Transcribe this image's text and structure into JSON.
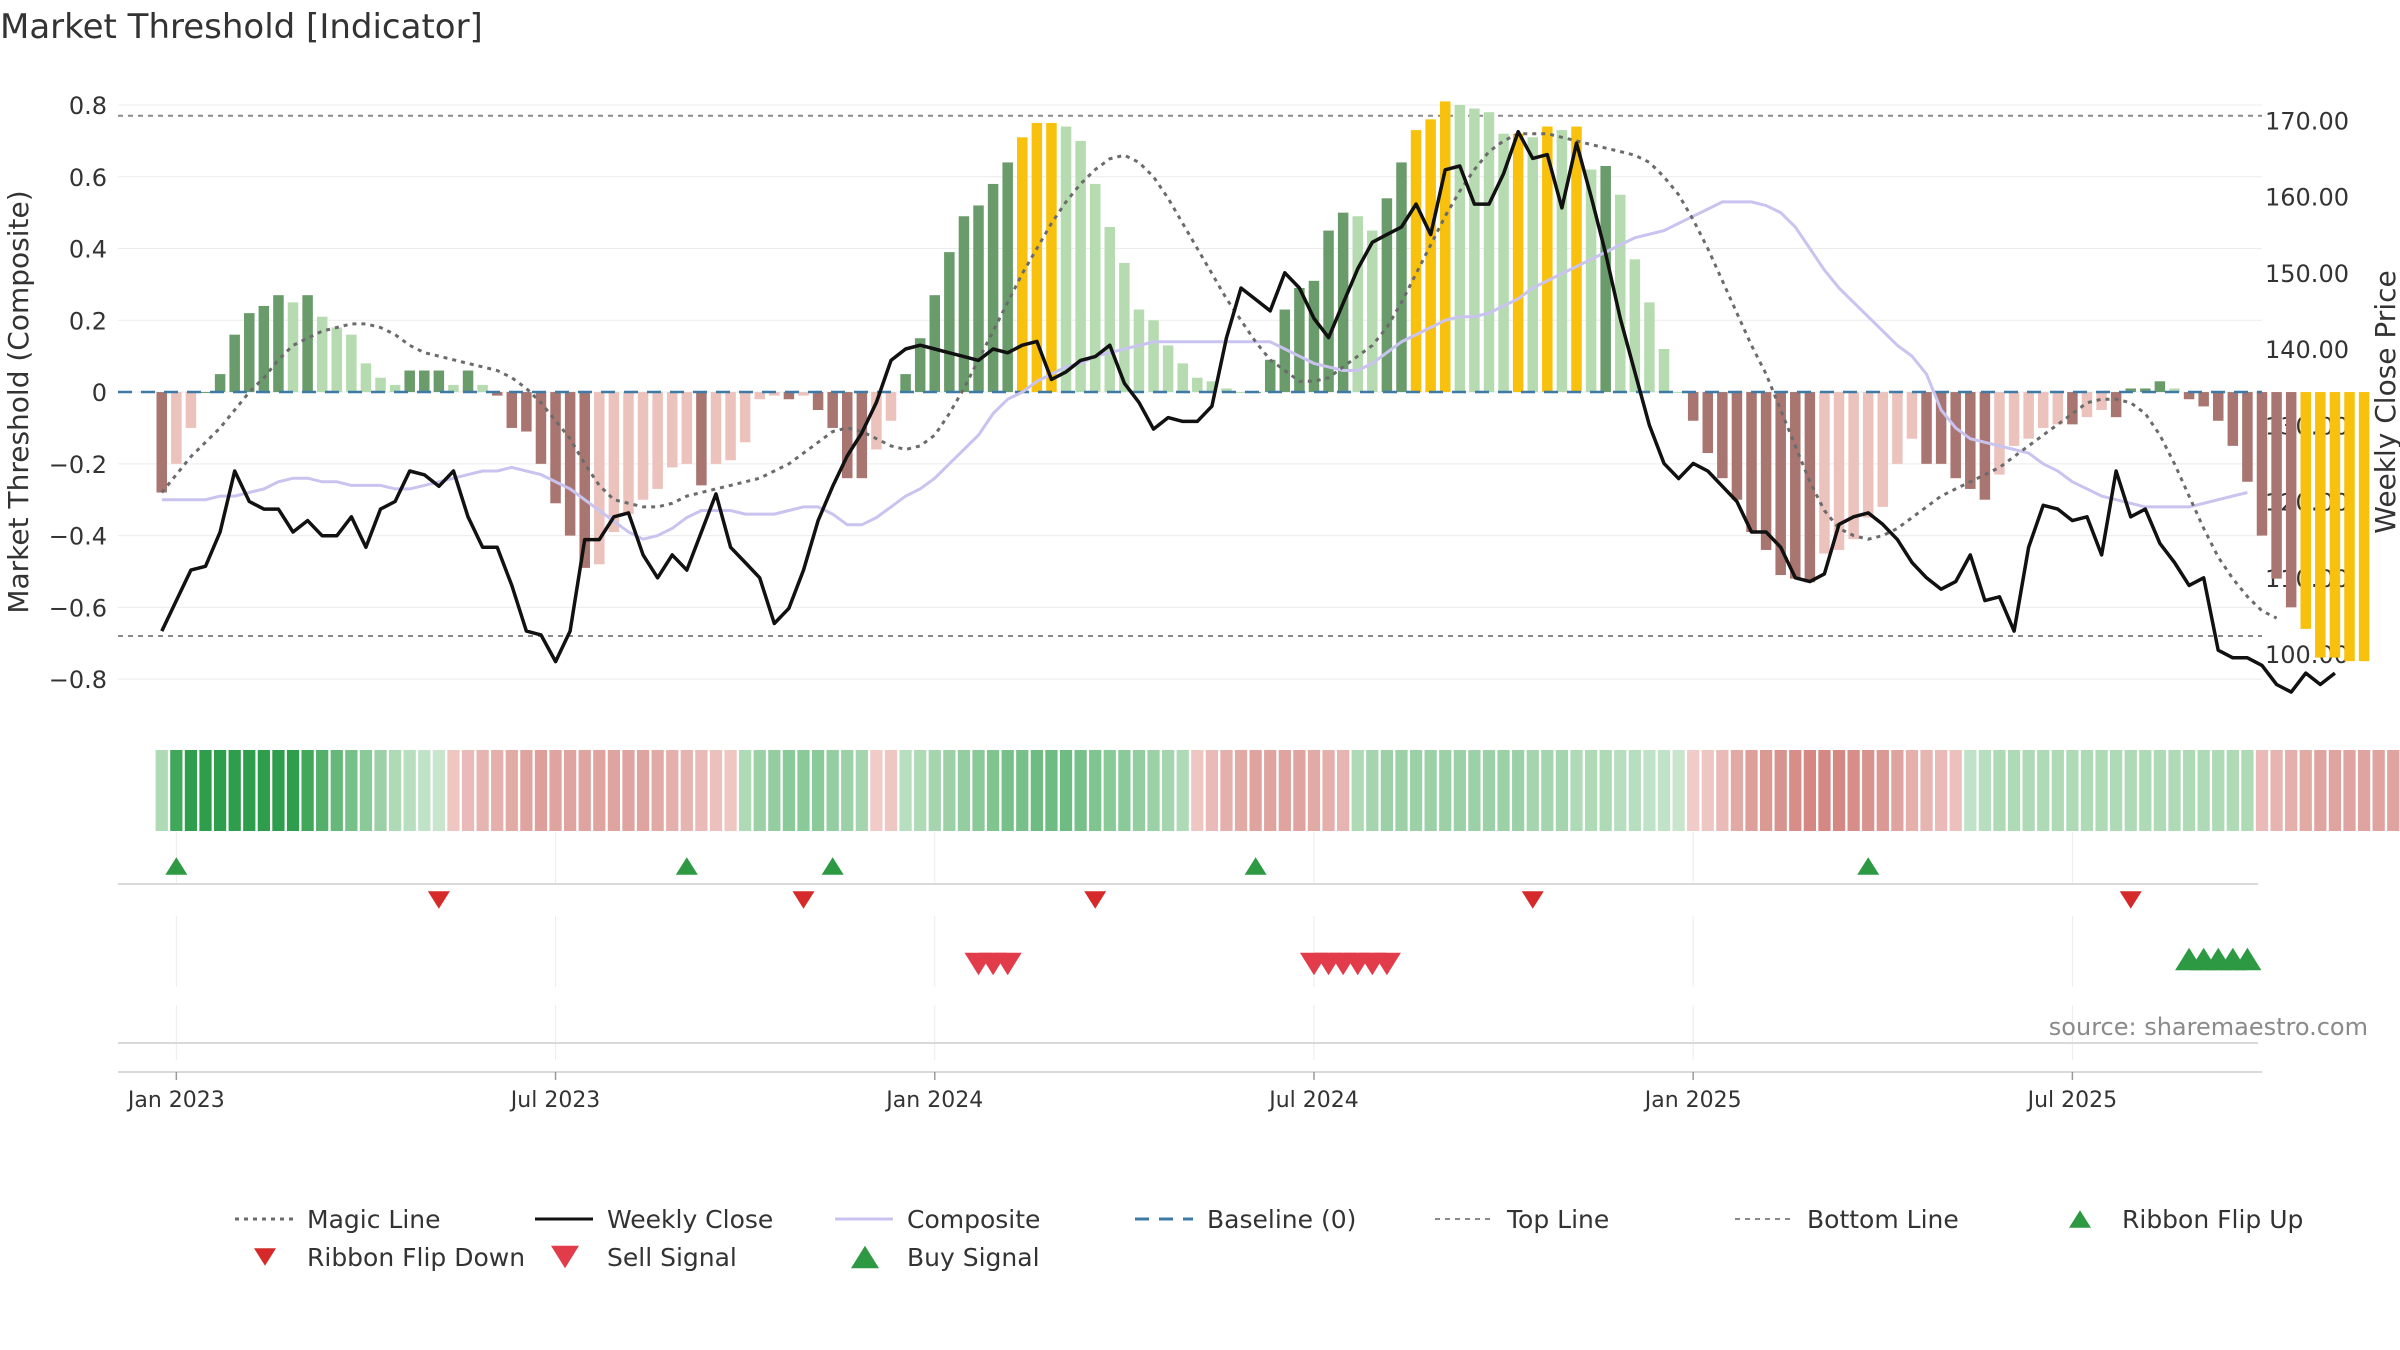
{
  "chart_data": {
    "type": "bar",
    "title": "Market Threshold [Indicator]",
    "ylabel": "Market Threshold (Composite)",
    "y2label": "Weekly Close Price",
    "ylim": [
      -0.9,
      0.8
    ],
    "y2lim": [
      92,
      172
    ],
    "yticks": [
      0.8,
      0.6,
      0.4,
      0.2,
      0,
      -0.2,
      -0.4,
      -0.6,
      -0.8
    ],
    "ytick_labels": [
      "0.8",
      "0.6",
      "0.4",
      "0.2",
      "0",
      "−0.2",
      "−0.4",
      "−0.6",
      "−0.8"
    ],
    "y2ticks": [
      170,
      160,
      150,
      140,
      130,
      120,
      110,
      100
    ],
    "y2tick_labels": [
      "170.00",
      "160.00",
      "150.00",
      "140.00",
      "130.00",
      "120.00",
      "110.00",
      "100.00"
    ],
    "xlim": [
      -3,
      144
    ],
    "xticks": [
      {
        "week": 1,
        "label": "Jan 2023"
      },
      {
        "week": 27,
        "label": "Jul 2023"
      },
      {
        "week": 53,
        "label": "Jan 2024"
      },
      {
        "week": 79,
        "label": "Jul 2024"
      },
      {
        "week": 105,
        "label": "Jan 2025"
      },
      {
        "week": 131,
        "label": "Jul 2025"
      }
    ],
    "top_line": 0.77,
    "bottom_line": -0.68,
    "baseline": 0,
    "composite": [
      -0.3,
      -0.3,
      -0.3,
      -0.3,
      -0.29,
      -0.29,
      -0.28,
      -0.27,
      -0.25,
      -0.24,
      -0.24,
      -0.25,
      -0.25,
      -0.26,
      -0.26,
      -0.26,
      -0.27,
      -0.27,
      -0.26,
      -0.25,
      -0.24,
      -0.23,
      -0.22,
      -0.22,
      -0.21,
      -0.22,
      -0.23,
      -0.25,
      -0.27,
      -0.3,
      -0.33,
      -0.36,
      -0.39,
      -0.41,
      -0.4,
      -0.38,
      -0.35,
      -0.33,
      -0.33,
      -0.33,
      -0.34,
      -0.34,
      -0.34,
      -0.33,
      -0.32,
      -0.32,
      -0.34,
      -0.37,
      -0.37,
      -0.35,
      -0.32,
      -0.29,
      -0.27,
      -0.24,
      -0.2,
      -0.16,
      -0.12,
      -0.06,
      -0.02,
      0,
      0.03,
      0.05,
      0.07,
      0.08,
      0.1,
      0.11,
      0.12,
      0.13,
      0.14,
      0.14,
      0.14,
      0.14,
      0.14,
      0.14,
      0.14,
      0.14,
      0.14,
      0.12,
      0.1,
      0.08,
      0.07,
      0.06,
      0.06,
      0.08,
      0.11,
      0.14,
      0.16,
      0.18,
      0.2,
      0.21,
      0.21,
      0.22,
      0.24,
      0.26,
      0.29,
      0.31,
      0.33,
      0.35,
      0.37,
      0.39,
      0.41,
      0.43,
      0.44,
      0.45,
      0.47,
      0.49,
      0.51,
      0.53,
      0.53,
      0.53,
      0.52,
      0.5,
      0.46,
      0.4,
      0.34,
      0.29,
      0.25,
      0.21,
      0.17,
      0.13,
      0.1,
      0.05,
      -0.05,
      -0.1,
      -0.13,
      -0.14,
      -0.15,
      -0.16,
      -0.17,
      -0.2,
      -0.22,
      -0.25,
      -0.27,
      -0.29,
      -0.3,
      -0.31,
      -0.32,
      -0.32,
      -0.32,
      -0.32,
      -0.31,
      -0.3,
      -0.29,
      -0.28
    ],
    "magic_line": [
      -0.28,
      -0.23,
      -0.18,
      -0.14,
      -0.1,
      -0.05,
      0,
      0.04,
      0.09,
      0.13,
      0.15,
      0.17,
      0.18,
      0.19,
      0.19,
      0.18,
      0.16,
      0.13,
      0.11,
      0.1,
      0.09,
      0.08,
      0.07,
      0.06,
      0.04,
      0.01,
      -0.03,
      -0.08,
      -0.13,
      -0.2,
      -0.26,
      -0.3,
      -0.31,
      -0.32,
      -0.32,
      -0.31,
      -0.29,
      -0.28,
      -0.27,
      -0.26,
      -0.25,
      -0.24,
      -0.22,
      -0.2,
      -0.17,
      -0.14,
      -0.11,
      -0.1,
      -0.11,
      -0.13,
      -0.15,
      -0.16,
      -0.15,
      -0.12,
      -0.06,
      0.01,
      0.09,
      0.17,
      0.25,
      0.33,
      0.4,
      0.47,
      0.53,
      0.58,
      0.62,
      0.65,
      0.66,
      0.64,
      0.6,
      0.54,
      0.47,
      0.4,
      0.33,
      0.26,
      0.2,
      0.14,
      0.09,
      0.06,
      0.03,
      0.03,
      0.04,
      0.07,
      0.1,
      0.13,
      0.18,
      0.25,
      0.33,
      0.41,
      0.49,
      0.56,
      0.62,
      0.67,
      0.7,
      0.72,
      0.72,
      0.72,
      0.71,
      0.7,
      0.69,
      0.68,
      0.67,
      0.66,
      0.64,
      0.6,
      0.55,
      0.48,
      0.4,
      0.31,
      0.22,
      0.13,
      0.05,
      -0.05,
      -0.15,
      -0.25,
      -0.33,
      -0.38,
      -0.4,
      -0.41,
      -0.4,
      -0.38,
      -0.35,
      -0.32,
      -0.29,
      -0.27,
      -0.25,
      -0.23,
      -0.21,
      -0.18,
      -0.15,
      -0.12,
      -0.09,
      -0.06,
      -0.03,
      -0.02,
      -0.02,
      -0.03,
      -0.06,
      -0.12,
      -0.2,
      -0.29,
      -0.38,
      -0.46,
      -0.52,
      -0.57,
      -0.61,
      -0.63
    ],
    "weekly_close": [
      103,
      107,
      111,
      111.5,
      116,
      124,
      120,
      119,
      119,
      116,
      117.5,
      115.5,
      115.5,
      118,
      114,
      119,
      120,
      124,
      123.5,
      122,
      124,
      118,
      114,
      114,
      109,
      103,
      102.5,
      99,
      103,
      115,
      115,
      118,
      118.5,
      113,
      110,
      113,
      111,
      116,
      121,
      114,
      112,
      110,
      104,
      106,
      111,
      117.5,
      122,
      126,
      129,
      133,
      138.5,
      140,
      140.5,
      140,
      139.5,
      139,
      138.5,
      140,
      139.5,
      140.5,
      141,
      136,
      137,
      138.5,
      139,
      140.5,
      135.5,
      133,
      129.5,
      131,
      130.5,
      130.5,
      132.5,
      141.5,
      148,
      146.5,
      145,
      150,
      148,
      144,
      141.5,
      146,
      150.5,
      154,
      155,
      156,
      159,
      155,
      163.5,
      164,
      159,
      159,
      163,
      168.5,
      165,
      165.5,
      158.5,
      167,
      160,
      152.5,
      144,
      137,
      130,
      125,
      123,
      125,
      124,
      122,
      120,
      116,
      116,
      114,
      110,
      109.5,
      110.5,
      117,
      118,
      118.5,
      117,
      115,
      112,
      110,
      108.5,
      109.5,
      113,
      107,
      107.5,
      103,
      114,
      119.5,
      119,
      117.5,
      118,
      113,
      124,
      118,
      119,
      114.5,
      112,
      109,
      110,
      100.5,
      99.5,
      99.5,
      98.5,
      96,
      95,
      97.5,
      96,
      97.5
    ],
    "histogram": [
      -0.28,
      -0.2,
      -0.1,
      0,
      0.05,
      0.16,
      0.22,
      0.24,
      0.27,
      0.25,
      0.27,
      0.21,
      0.18,
      0.16,
      0.08,
      0.04,
      0.02,
      0.06,
      0.06,
      0.06,
      0.02,
      0.06,
      0.02,
      -0.01,
      -0.1,
      -0.11,
      -0.2,
      -0.31,
      -0.4,
      -0.49,
      -0.48,
      -0.39,
      -0.34,
      -0.3,
      -0.27,
      -0.21,
      -0.2,
      -0.26,
      -0.2,
      -0.19,
      -0.14,
      -0.02,
      -0.01,
      -0.02,
      -0.01,
      -0.05,
      -0.1,
      -0.24,
      -0.24,
      -0.16,
      -0.08,
      0.05,
      0.15,
      0.27,
      0.39,
      0.49,
      0.52,
      0.58,
      0.64,
      0.71,
      0.75,
      0.75,
      0.74,
      0.7,
      0.58,
      0.46,
      0.36,
      0.23,
      0.2,
      0.13,
      0.08,
      0.04,
      0.03,
      0.01,
      0,
      0,
      0.09,
      0.23,
      0.29,
      0.31,
      0.45,
      0.5,
      0.49,
      0.45,
      0.54,
      0.64,
      0.73,
      0.76,
      0.81,
      0.8,
      0.79,
      0.78,
      0.72,
      0.72,
      0.71,
      0.74,
      0.73,
      0.74,
      0.62,
      0.63,
      0.55,
      0.37,
      0.25,
      0.12,
      0,
      -0.08,
      -0.17,
      -0.24,
      -0.3,
      -0.39,
      -0.44,
      -0.51,
      -0.52,
      -0.53,
      -0.45,
      -0.44,
      -0.41,
      -0.35,
      -0.32,
      -0.2,
      -0.13,
      -0.2,
      -0.2,
      -0.24,
      -0.27,
      -0.3,
      -0.23,
      -0.15,
      -0.13,
      -0.1,
      -0.09,
      -0.09,
      -0.07,
      -0.05,
      -0.07,
      0.01,
      0.01,
      0.03,
      0.01,
      -0.02,
      -0.04,
      -0.08,
      -0.15,
      -0.25,
      -0.4,
      -0.52,
      -0.6,
      -0.66,
      -0.74,
      -0.74,
      -0.75,
      -0.75
    ],
    "histogram_colors": {
      "strong_bull": "#6a9c6b",
      "weak_bull": "#b6dbb0",
      "strong_bear": "#a97570",
      "weak_bear": "#ecc2bd",
      "extreme": "#f8c10d"
    },
    "ribbon": [
      0.3,
      0.9,
      1,
      1,
      1,
      1,
      1,
      1,
      1,
      1,
      0.9,
      0.8,
      0.7,
      0.6,
      0.5,
      0.4,
      0.3,
      0.25,
      0.2,
      0.15,
      -0.2,
      -0.3,
      -0.35,
      -0.4,
      -0.45,
      -0.5,
      -0.55,
      -0.5,
      -0.5,
      -0.5,
      -0.5,
      -0.5,
      -0.5,
      -0.5,
      -0.45,
      -0.4,
      -0.35,
      -0.3,
      -0.25,
      -0.2,
      0.3,
      0.4,
      0.45,
      0.5,
      0.5,
      0.5,
      0.45,
      0.4,
      0.35,
      -0.15,
      -0.2,
      0.25,
      0.3,
      0.35,
      0.4,
      0.45,
      0.5,
      0.55,
      0.6,
      0.6,
      0.65,
      0.65,
      0.65,
      0.6,
      0.55,
      0.5,
      0.5,
      0.45,
      0.4,
      0.35,
      0.3,
      -0.2,
      -0.3,
      -0.4,
      -0.45,
      -0.5,
      -0.5,
      -0.5,
      -0.5,
      -0.45,
      -0.4,
      -0.35,
      0.3,
      0.35,
      0.4,
      0.4,
      0.4,
      0.4,
      0.4,
      0.4,
      0.4,
      0.4,
      0.4,
      0.4,
      0.35,
      0.35,
      0.35,
      0.3,
      0.3,
      0.3,
      0.25,
      0.25,
      0.2,
      0.2,
      0.15,
      -0.15,
      -0.2,
      -0.3,
      -0.45,
      -0.55,
      -0.6,
      -0.65,
      -0.7,
      -0.75,
      -0.75,
      -0.75,
      -0.7,
      -0.65,
      -0.6,
      -0.5,
      -0.4,
      -0.35,
      -0.3,
      -0.25,
      0.2,
      0.25,
      0.3,
      0.3,
      0.3,
      0.3,
      0.3,
      0.3,
      0.3,
      0.3,
      0.3,
      0.3,
      0.3,
      0.3,
      0.3,
      0.3,
      0.3,
      0.3,
      0.3,
      0.3,
      -0.3,
      -0.35,
      -0.4,
      -0.45,
      -0.5,
      -0.5,
      -0.5,
      -0.5,
      -0.5,
      -0.5
    ],
    "ribbon_flip_up": [
      1,
      36,
      46,
      75,
      117
    ],
    "ribbon_flip_down": [
      19,
      44,
      64,
      94,
      135
    ],
    "sell_signals": [
      56,
      57,
      58,
      79,
      80,
      81,
      82,
      83,
      84
    ],
    "buy_signals": [
      139,
      140,
      141,
      142,
      143
    ],
    "source_label": "source: sharemaestro.com",
    "legend": [
      {
        "label": "Magic Line",
        "kind": "dotted",
        "color": "#6b6b6b"
      },
      {
        "label": "Weekly Close",
        "kind": "solid",
        "color": "#111111"
      },
      {
        "label": "Composite",
        "kind": "solid",
        "color": "#c9c3f0"
      },
      {
        "label": "Baseline (0)",
        "kind": "dashed",
        "color": "#3e7aa6"
      },
      {
        "label": "Top Line",
        "kind": "dotted-thin",
        "color": "#8a8a8a"
      },
      {
        "label": "Bottom Line",
        "kind": "dotted-thin",
        "color": "#8a8a8a"
      },
      {
        "label": "Ribbon Flip Up",
        "kind": "tri-up",
        "color": "#2d9a43"
      },
      {
        "label": "Ribbon Flip Down",
        "kind": "tri-down",
        "color": "#d62a2a"
      },
      {
        "label": "Sell Signal",
        "kind": "tri-down-big",
        "color": "#e23b4a"
      },
      {
        "label": "Buy Signal",
        "kind": "tri-up-big",
        "color": "#2d9a43"
      }
    ]
  }
}
